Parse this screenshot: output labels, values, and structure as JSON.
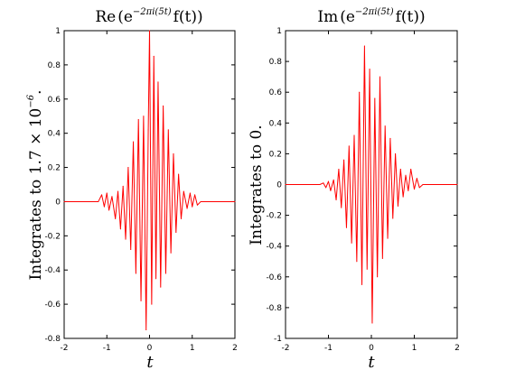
{
  "colors": {
    "line": "#ff0000",
    "axes": "#000000",
    "background": "#ffffff"
  },
  "chart_data": [
    {
      "type": "line",
      "title": "Re(e^{-2πi(5t)} f(t))",
      "title_parts": {
        "fn": "Re",
        "exp": "−2πi(5t)",
        "tail": "f(t)"
      },
      "xlabel": "t",
      "ylabel": "Integrates to 1.7 × 10^-6.",
      "ylabel_parts": {
        "main": "Integrates to 1.7 × 10",
        "exp": "−6",
        "tail": "."
      },
      "xlim": [
        -2,
        2
      ],
      "ylim": [
        -0.8,
        1
      ],
      "xticks": [
        "-2",
        "-1",
        "0",
        "1",
        "2"
      ],
      "yticks": [
        "-0.8",
        "-0.6",
        "-0.4",
        "-0.2",
        "0",
        "0.2",
        "0.4",
        "0.6",
        "0.8",
        "1"
      ],
      "grid": false,
      "series": [
        {
          "x": [
            -2.0,
            -1.2,
            -1.12,
            -1.06,
            -1.0,
            -0.95,
            -0.88,
            -0.8,
            -0.74,
            -0.68,
            -0.62,
            -0.56,
            -0.5,
            -0.44,
            -0.38,
            -0.32,
            -0.26,
            -0.2,
            -0.14,
            -0.08,
            -0.03,
            0.0,
            0.05,
            0.1,
            0.15,
            0.2,
            0.26,
            0.32,
            0.38,
            0.44,
            0.5,
            0.56,
            0.62,
            0.68,
            0.74,
            0.8,
            0.88,
            0.95,
            1.0,
            1.06,
            1.12,
            1.2,
            2.0
          ],
          "y": [
            0.0,
            0.0,
            0.04,
            -0.03,
            0.05,
            -0.05,
            0.03,
            -0.1,
            0.06,
            -0.16,
            0.09,
            -0.22,
            0.2,
            -0.28,
            0.35,
            -0.42,
            0.48,
            -0.58,
            0.5,
            -0.75,
            0.42,
            1.0,
            -0.6,
            0.85,
            -0.45,
            0.7,
            -0.5,
            0.56,
            -0.42,
            0.42,
            -0.3,
            0.28,
            -0.18,
            0.16,
            -0.1,
            0.06,
            -0.04,
            0.05,
            -0.03,
            0.04,
            -0.02,
            0.0,
            0.0
          ]
        }
      ]
    },
    {
      "type": "line",
      "title": "Im(e^{-2πi(5t)} f(t))",
      "title_parts": {
        "fn": "Im",
        "exp": "−2πi(5t)",
        "tail": "f(t)"
      },
      "xlabel": "t",
      "ylabel": "Integrates to 0.",
      "ylabel_parts": {
        "main": "Integrates to 0.",
        "exp": "",
        "tail": ""
      },
      "xlim": [
        -2,
        2
      ],
      "ylim": [
        -1,
        1
      ],
      "xticks": [
        "-2",
        "-1",
        "0",
        "1",
        "2"
      ],
      "yticks": [
        "-1",
        "-0.8",
        "-0.6",
        "-0.4",
        "-0.2",
        "0",
        "0.2",
        "0.4",
        "0.6",
        "0.8",
        "1"
      ],
      "grid": false,
      "series": [
        {
          "x": [
            -2.0,
            -1.2,
            -1.12,
            -1.06,
            -1.0,
            -0.95,
            -0.88,
            -0.82,
            -0.76,
            -0.7,
            -0.64,
            -0.58,
            -0.52,
            -0.46,
            -0.4,
            -0.34,
            -0.28,
            -0.22,
            -0.16,
            -0.1,
            -0.04,
            0.02,
            0.08,
            0.14,
            0.2,
            0.26,
            0.32,
            0.38,
            0.44,
            0.5,
            0.56,
            0.62,
            0.68,
            0.74,
            0.8,
            0.86,
            0.92,
            1.0,
            1.06,
            1.12,
            1.2,
            2.0
          ],
          "y": [
            0.0,
            0.0,
            0.01,
            -0.02,
            0.02,
            -0.04,
            0.03,
            -0.1,
            0.1,
            -0.15,
            0.16,
            -0.28,
            0.25,
            -0.38,
            0.32,
            -0.5,
            0.6,
            -0.65,
            0.9,
            -0.55,
            0.75,
            -0.9,
            0.56,
            -0.6,
            0.7,
            -0.48,
            0.38,
            -0.35,
            0.3,
            -0.22,
            0.2,
            -0.14,
            0.1,
            -0.08,
            0.06,
            -0.04,
            0.1,
            -0.03,
            0.04,
            -0.02,
            0.0,
            0.0
          ]
        }
      ]
    }
  ]
}
